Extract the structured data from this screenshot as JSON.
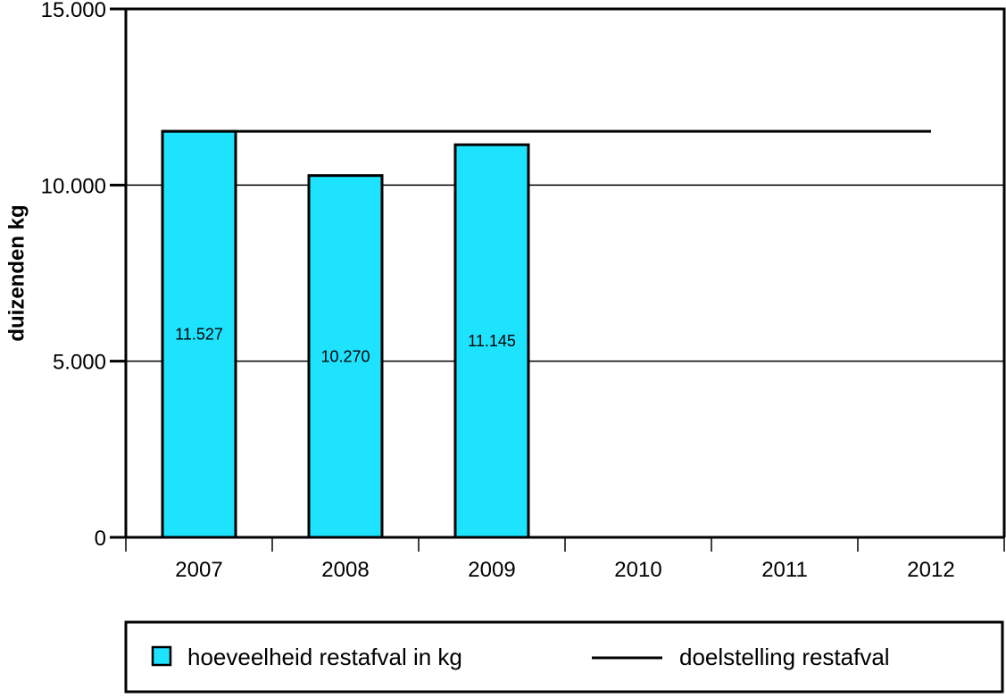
{
  "chart_data": {
    "type": "bar",
    "title": "",
    "xlabel": "",
    "ylabel": "duizenden kg",
    "ylim": [
      0,
      15000
    ],
    "yticks": [
      {
        "value": 0,
        "label": "0"
      },
      {
        "value": 5000,
        "label": "5.000"
      },
      {
        "value": 10000,
        "label": "10.000"
      },
      {
        "value": 15000,
        "label": "15.000"
      }
    ],
    "categories": [
      "2007",
      "2008",
      "2009",
      "2010",
      "2011",
      "2012"
    ],
    "series": [
      {
        "name": "hoeveelheid restafval in kg",
        "kind": "bar",
        "color": "#1ee3ff",
        "values": [
          11527,
          10270,
          11145,
          null,
          null,
          null
        ],
        "labels": [
          "11.527",
          "10.270",
          "11.145",
          "",
          "",
          ""
        ]
      },
      {
        "name": "doelstelling restafval",
        "kind": "line",
        "color": "#000000",
        "values": [
          11527,
          11527,
          11527,
          11527,
          11527,
          11527
        ]
      }
    ],
    "grid": true,
    "legend_position": "bottom"
  }
}
